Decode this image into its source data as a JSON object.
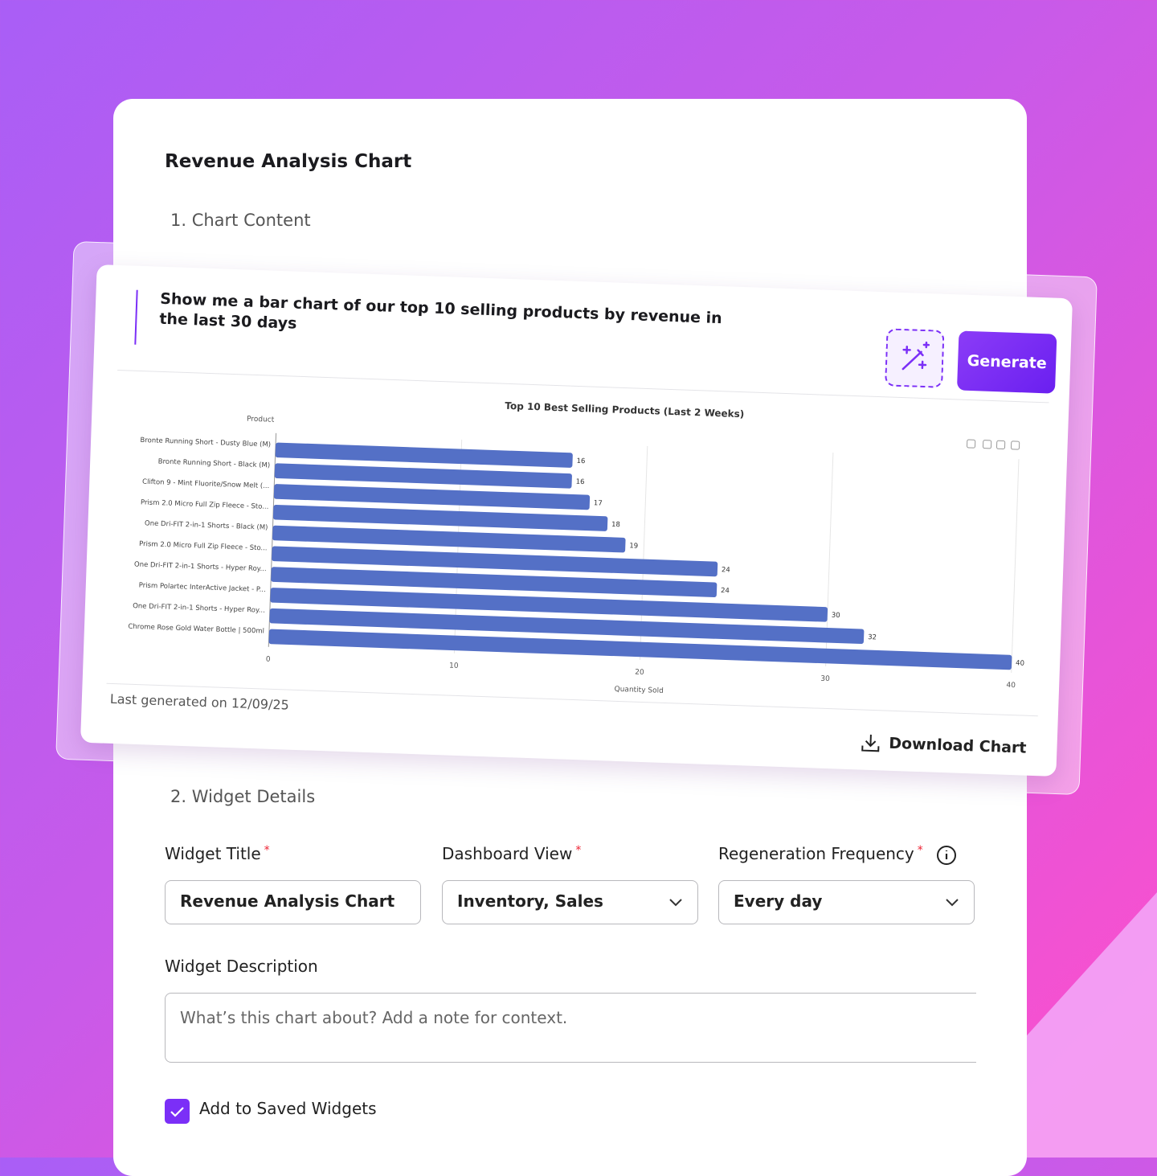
{
  "form": {
    "title": "Revenue Analysis Chart",
    "section_1": "1. Chart Content",
    "section_2": "2. Widget Details",
    "fields": [
      {
        "label": "Widget Title",
        "required": "*",
        "value": "Revenue Analysis Chart"
      },
      {
        "label": "Dashboard View",
        "required": "*",
        "value": "Inventory, Sales"
      },
      {
        "label": "Regeneration Frequency",
        "required": "*",
        "value": "Every day"
      }
    ],
    "description_label": "Widget Description",
    "description_placeholder": "What’s this chart about? Add a note for context.",
    "checkbox_label": "Add to Saved Widgets"
  },
  "prompt": {
    "text": "Show me a bar chart of our top 10 selling products by revenue in the last 30 days",
    "generate": "Generate",
    "last_generated": "Last generated on 12/09/25",
    "download": "Download Chart"
  },
  "chart_data": {
    "type": "bar",
    "orientation": "horizontal",
    "title": "Top 10 Best Selling Products (Last 2 Weeks)",
    "x_label": "Quantity Sold",
    "y_label": "Product",
    "categories": [
      "Bronte Running Short - Dusty Blue (M)",
      "Bronte Running Short - Black (M)",
      "Clifton 9 - Mint Fluorite/Snow Melt (...",
      "Prism 2.0 Micro Full Zip Fleece - Sto...",
      "One Dri-FIT 2-in-1 Shorts - Black (M)",
      "Prism 2.0 Micro Full Zip Fleece - Sto...",
      "One Dri-FIT 2-in-1 Shorts - Hyper Roy...",
      "Prism Polartec InterActive Jacket - P...",
      "One Dri-FIT 2-in-1 Shorts - Hyper Roy...",
      "Chrome Rose Gold Water Bottle | 500ml"
    ],
    "values": [
      16,
      16,
      17,
      18,
      19,
      24,
      24,
      30,
      32,
      40
    ],
    "color": "#5470c6",
    "xlim": [
      0,
      40
    ],
    "xticks": [
      0,
      10,
      20,
      30,
      40
    ],
    "grid": true
  }
}
